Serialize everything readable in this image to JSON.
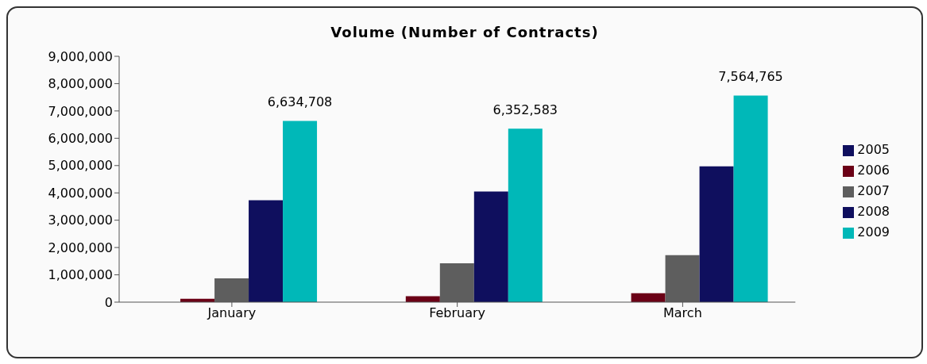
{
  "chart_data": {
    "type": "bar",
    "title": "Volume (Number of Contracts)",
    "categories": [
      "January",
      "February",
      "March"
    ],
    "series": [
      {
        "name": "2005",
        "color": "#0f0f5e",
        "values": [
          0,
          0,
          0
        ]
      },
      {
        "name": "2006",
        "color": "#6b0016",
        "values": [
          120000,
          220000,
          330000
        ]
      },
      {
        "name": "2007",
        "color": "#5e5e5e",
        "values": [
          870000,
          1420000,
          1720000
        ]
      },
      {
        "name": "2008",
        "color": "#0f0f5e",
        "values": [
          3730000,
          4050000,
          4970000
        ]
      },
      {
        "name": "2009",
        "color": "#00b8b8",
        "values": [
          6634708,
          6352583,
          7564765
        ],
        "value_labels": [
          "6,634,708",
          "6,352,583",
          "7,564,765"
        ]
      }
    ],
    "ylim": [
      0,
      9000000
    ],
    "yticks": [
      {
        "value": 0,
        "label": "0"
      },
      {
        "value": 1000000,
        "label": "1,000,000"
      },
      {
        "value": 2000000,
        "label": "2,000,000"
      },
      {
        "value": 3000000,
        "label": "3,000,000"
      },
      {
        "value": 4000000,
        "label": "4,000,000"
      },
      {
        "value": 5000000,
        "label": "5,000,000"
      },
      {
        "value": 6000000,
        "label": "6,000,000"
      },
      {
        "value": 7000000,
        "label": "7,000,000"
      },
      {
        "value": 8000000,
        "label": "8,000,000"
      },
      {
        "value": 9000000,
        "label": "9,000,000"
      }
    ],
    "grid": false,
    "legend": "right"
  }
}
